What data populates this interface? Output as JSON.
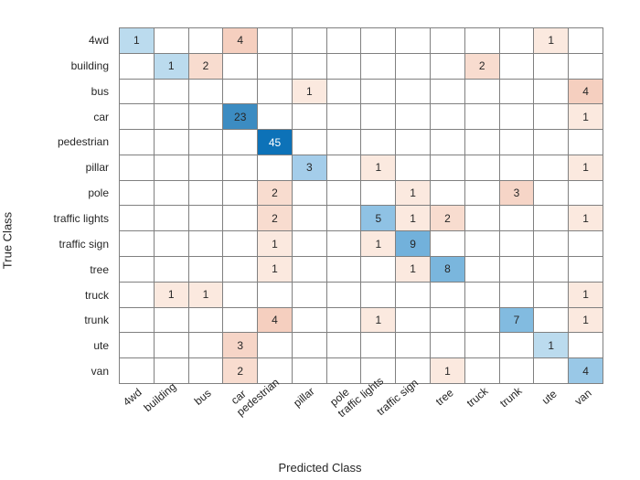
{
  "confusion_matrix": {
    "type": "heatmap",
    "classes": [
      "4wd",
      "building",
      "bus",
      "car",
      "pedestrian",
      "pillar",
      "pole",
      "traffic lights",
      "traffic sign",
      "tree",
      "truck",
      "trunk",
      "ute",
      "van"
    ],
    "y_label": "True Class",
    "x_label": "Predicted Class",
    "label_fontsize": 13,
    "tick_fontsize": 12,
    "cell_fontsize": 12,
    "x_tick_rotation_deg": -40,
    "grid_color": "#808080",
    "grid_width": 0.5,
    "background_color": "#ffffff",
    "text_color": "#262626",
    "cell_text_dark": "#262626",
    "cell_text_light": "#ffffff",
    "default_cell_color": "#ffffff",
    "cells": [
      {
        "r": 0,
        "c": 0,
        "v": 1,
        "bg": "#bbdbee",
        "fg": "#262626"
      },
      {
        "r": 0,
        "c": 3,
        "v": 4,
        "bg": "#f5cfbf",
        "fg": "#262626"
      },
      {
        "r": 0,
        "c": 12,
        "v": 1,
        "bg": "#fbe9df",
        "fg": "#262626"
      },
      {
        "r": 1,
        "c": 1,
        "v": 1,
        "bg": "#bbdbee",
        "fg": "#262626"
      },
      {
        "r": 1,
        "c": 2,
        "v": 2,
        "bg": "#f8dccf",
        "fg": "#262626"
      },
      {
        "r": 1,
        "c": 10,
        "v": 2,
        "bg": "#f8dccf",
        "fg": "#262626"
      },
      {
        "r": 2,
        "c": 5,
        "v": 1,
        "bg": "#fbe9df",
        "fg": "#262626"
      },
      {
        "r": 2,
        "c": 13,
        "v": 4,
        "bg": "#f5cfbf",
        "fg": "#262626"
      },
      {
        "r": 3,
        "c": 3,
        "v": 23,
        "bg": "#3c8cc2",
        "fg": "#262626"
      },
      {
        "r": 3,
        "c": 13,
        "v": 1,
        "bg": "#fbe9df",
        "fg": "#262626"
      },
      {
        "r": 4,
        "c": 4,
        "v": 45,
        "bg": "#0d72b8",
        "fg": "#ffffff"
      },
      {
        "r": 5,
        "c": 5,
        "v": 3,
        "bg": "#a4cdea",
        "fg": "#262626"
      },
      {
        "r": 5,
        "c": 7,
        "v": 1,
        "bg": "#fbe9df",
        "fg": "#262626"
      },
      {
        "r": 5,
        "c": 13,
        "v": 1,
        "bg": "#fbe9df",
        "fg": "#262626"
      },
      {
        "r": 6,
        "c": 4,
        "v": 2,
        "bg": "#f8dccf",
        "fg": "#262626"
      },
      {
        "r": 6,
        "c": 8,
        "v": 1,
        "bg": "#fbe9df",
        "fg": "#262626"
      },
      {
        "r": 6,
        "c": 11,
        "v": 3,
        "bg": "#f6d5c7",
        "fg": "#262626"
      },
      {
        "r": 7,
        "c": 4,
        "v": 2,
        "bg": "#f8dccf",
        "fg": "#262626"
      },
      {
        "r": 7,
        "c": 7,
        "v": 5,
        "bg": "#8fc2e4",
        "fg": "#262626"
      },
      {
        "r": 7,
        "c": 8,
        "v": 1,
        "bg": "#fbe9df",
        "fg": "#262626"
      },
      {
        "r": 7,
        "c": 9,
        "v": 2,
        "bg": "#f8dccf",
        "fg": "#262626"
      },
      {
        "r": 7,
        "c": 13,
        "v": 1,
        "bg": "#fbe9df",
        "fg": "#262626"
      },
      {
        "r": 8,
        "c": 4,
        "v": 1,
        "bg": "#fbe9df",
        "fg": "#262626"
      },
      {
        "r": 8,
        "c": 7,
        "v": 1,
        "bg": "#fbe9df",
        "fg": "#262626"
      },
      {
        "r": 8,
        "c": 8,
        "v": 9,
        "bg": "#72b1db",
        "fg": "#262626"
      },
      {
        "r": 9,
        "c": 4,
        "v": 1,
        "bg": "#fbe9df",
        "fg": "#262626"
      },
      {
        "r": 9,
        "c": 8,
        "v": 1,
        "bg": "#fbe9df",
        "fg": "#262626"
      },
      {
        "r": 9,
        "c": 9,
        "v": 8,
        "bg": "#7ab6dd",
        "fg": "#262626"
      },
      {
        "r": 10,
        "c": 1,
        "v": 1,
        "bg": "#fbe9df",
        "fg": "#262626"
      },
      {
        "r": 10,
        "c": 2,
        "v": 1,
        "bg": "#fbe9df",
        "fg": "#262626"
      },
      {
        "r": 10,
        "c": 13,
        "v": 1,
        "bg": "#fbe9df",
        "fg": "#262626"
      },
      {
        "r": 11,
        "c": 4,
        "v": 4,
        "bg": "#f5cfbf",
        "fg": "#262626"
      },
      {
        "r": 11,
        "c": 7,
        "v": 1,
        "bg": "#fbe9df",
        "fg": "#262626"
      },
      {
        "r": 11,
        "c": 11,
        "v": 7,
        "bg": "#82bbe0",
        "fg": "#262626"
      },
      {
        "r": 11,
        "c": 13,
        "v": 1,
        "bg": "#fbe9df",
        "fg": "#262626"
      },
      {
        "r": 12,
        "c": 3,
        "v": 3,
        "bg": "#f6d5c7",
        "fg": "#262626"
      },
      {
        "r": 12,
        "c": 12,
        "v": 1,
        "bg": "#bbdbee",
        "fg": "#262626"
      },
      {
        "r": 13,
        "c": 3,
        "v": 2,
        "bg": "#f8dccf",
        "fg": "#262626"
      },
      {
        "r": 13,
        "c": 9,
        "v": 1,
        "bg": "#fbe9df",
        "fg": "#262626"
      },
      {
        "r": 13,
        "c": 13,
        "v": 4,
        "bg": "#99c8e7",
        "fg": "#262626"
      }
    ]
  }
}
